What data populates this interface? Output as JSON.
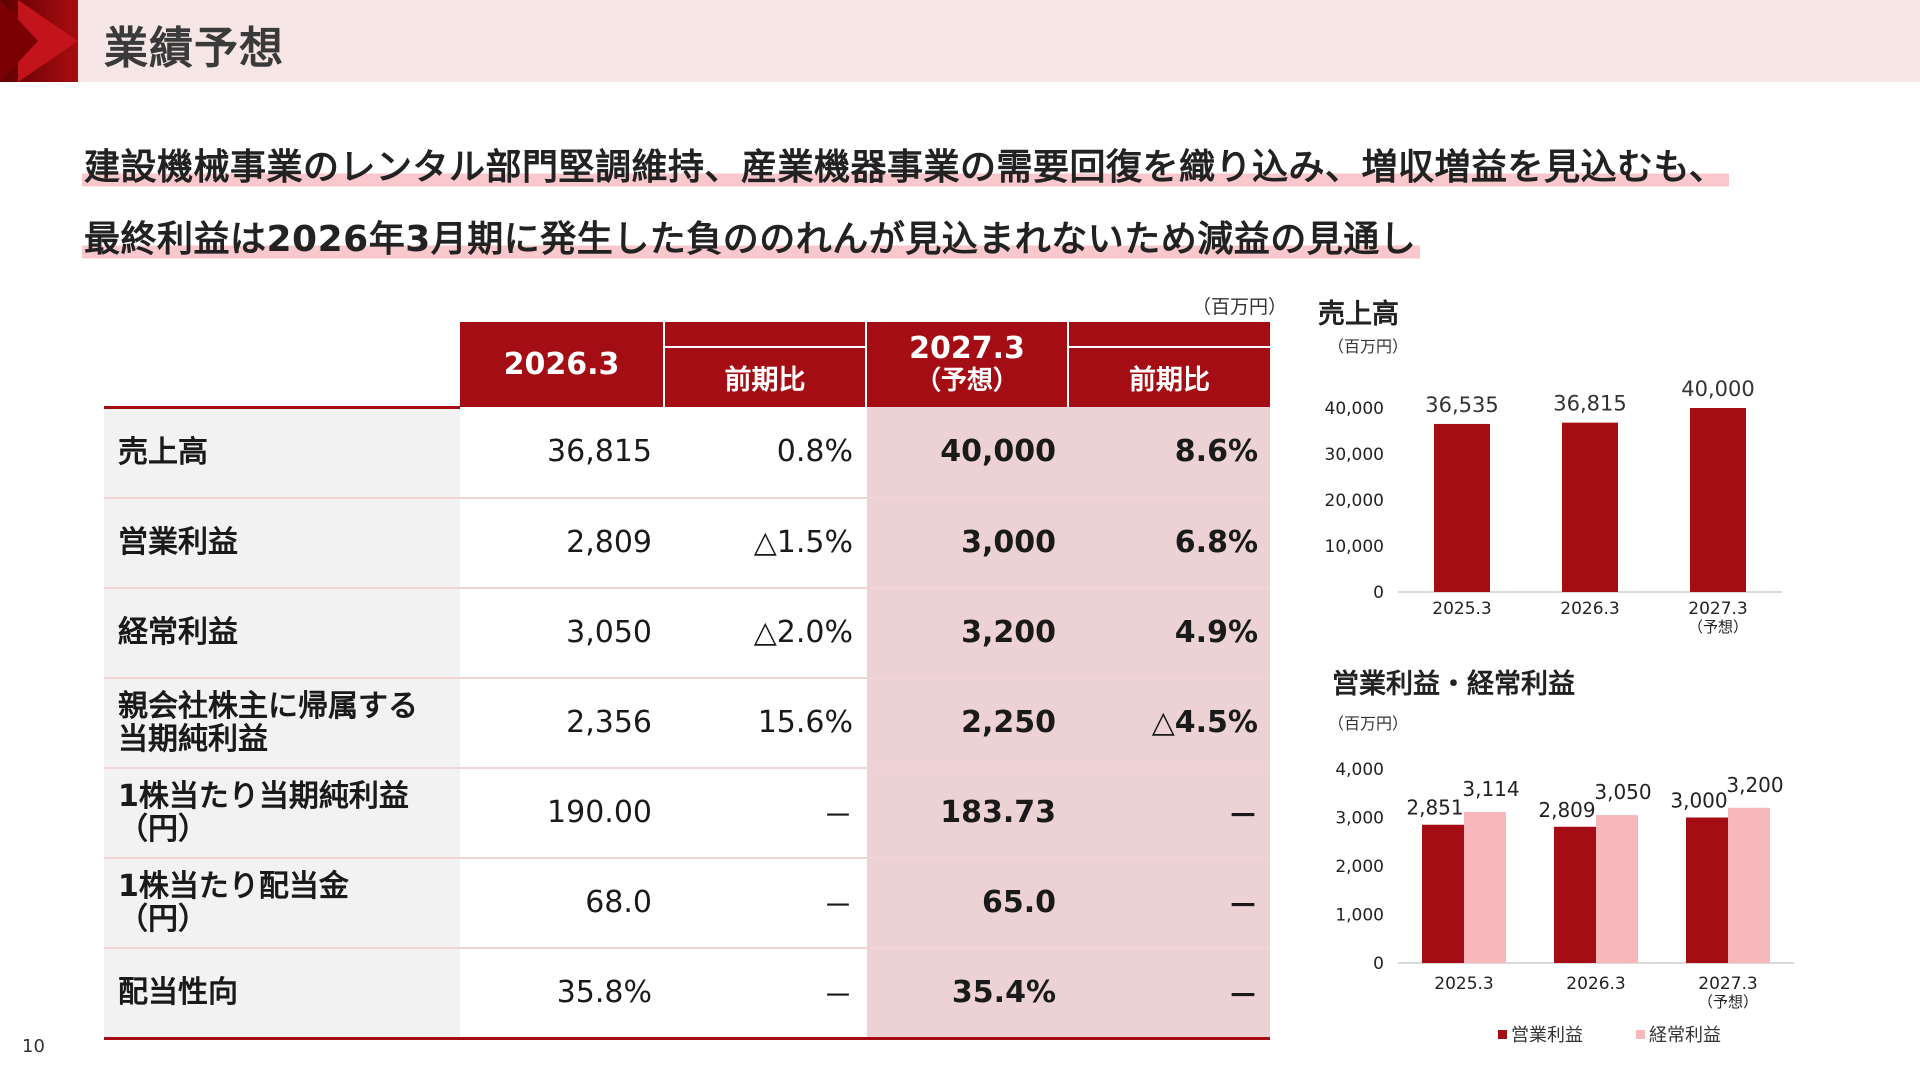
{
  "header": {
    "title": "業績予想"
  },
  "headline": {
    "line1": "建設機械事業のレンタル部門堅調維持、産業機器事業の需要回復を織り込み、増収増益を見込むも、",
    "line2": "最終利益は2026年3月期に発生した負ののれんが見込まれないため減益の見通し"
  },
  "table": {
    "unit": "（百万円）",
    "col_actual": "2026.3",
    "col_yoy": "前期比",
    "col_forecast_1": "2027.3",
    "col_forecast_2": "（予想）",
    "col_yoy2": "前期比",
    "rows": [
      {
        "label1": "売上高",
        "label2": "",
        "actual": "36,815",
        "yoy": "0.8%",
        "forecast": "40,000",
        "yoy2": "8.6%"
      },
      {
        "label1": "営業利益",
        "label2": "",
        "actual": "2,809",
        "yoy": "△1.5%",
        "forecast": "3,000",
        "yoy2": "6.8%"
      },
      {
        "label1": "経常利益",
        "label2": "",
        "actual": "3,050",
        "yoy": "△2.0%",
        "forecast": "3,200",
        "yoy2": "4.9%"
      },
      {
        "label1": "親会社株主に帰属する",
        "label2": "当期純利益",
        "actual": "2,356",
        "yoy": "15.6%",
        "forecast": "2,250",
        "yoy2": "△4.5%"
      },
      {
        "label1": "1株当たり当期純利益",
        "label2": "（円）",
        "actual": "190.00",
        "yoy": "－",
        "forecast": "183.73",
        "yoy2": "－"
      },
      {
        "label1": "1株当たり配当金",
        "label2": "（円）",
        "actual": "68.0",
        "yoy": "－",
        "forecast": "65.0",
        "yoy2": "－"
      },
      {
        "label1": "配当性向",
        "label2": "",
        "actual": "35.8%",
        "yoy": "－",
        "forecast": "35.4%",
        "yoy2": "－"
      }
    ]
  },
  "chart_data": [
    {
      "type": "bar",
      "title": "売上高",
      "ylabel": "（百万円）",
      "categories": [
        "2025.3",
        "2026.3",
        "2027.3"
      ],
      "category_sub": [
        "",
        "",
        "（予想）"
      ],
      "values": [
        36535,
        36815,
        40000
      ],
      "value_labels": [
        "36,535",
        "36,815",
        "40,000"
      ],
      "yticks": [
        "0",
        "10,000",
        "20,000",
        "30,000",
        "40,000"
      ],
      "ylim": [
        0,
        40000
      ],
      "color": "#a30d13"
    },
    {
      "type": "bar",
      "title": "営業利益・経常利益",
      "ylabel": "（百万円）",
      "categories": [
        "2025.3",
        "2026.3",
        "2027.3"
      ],
      "category_sub": [
        "",
        "",
        "（予想）"
      ],
      "series": [
        {
          "name": "営業利益",
          "values": [
            2851,
            2809,
            3000
          ],
          "labels": [
            "2,851",
            "2,809",
            "3,000"
          ],
          "color": "#a30d13"
        },
        {
          "name": "経常利益",
          "values": [
            3114,
            3050,
            3200
          ],
          "labels": [
            "3,114",
            "3,050",
            "3,200"
          ],
          "color": "#f7b7bb"
        }
      ],
      "yticks": [
        "0",
        "1,000",
        "2,000",
        "3,000",
        "4,000"
      ],
      "ylim": [
        0,
        4000
      ],
      "legend": "bottom"
    }
  ],
  "page": {
    "number": "10"
  },
  "colors": {
    "accent": "#a30d13",
    "forecast_bg": "#ecd2d4",
    "light_accent": "#f7b7bb",
    "header_bg": "#f6e6e6"
  }
}
